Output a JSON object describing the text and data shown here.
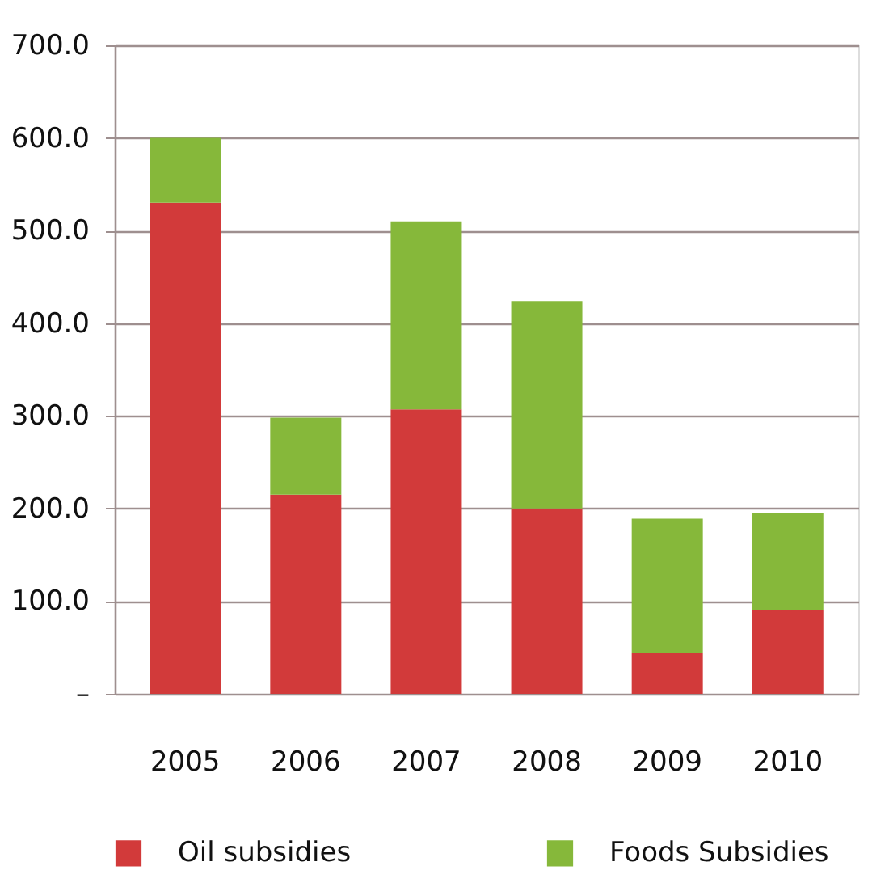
{
  "chart_data": {
    "type": "bar",
    "stacked": true,
    "categories": [
      "2005",
      "2006",
      "2007",
      "2008",
      "2009",
      "2010"
    ],
    "series": [
      {
        "name": "Oil subsidies",
        "color": "#d23a3a",
        "values": [
          530,
          215,
          307,
          200,
          44,
          90
        ]
      },
      {
        "name": "Foods Subsidies",
        "color": "#86b83a",
        "values": [
          70,
          83,
          203,
          224,
          145,
          105
        ]
      }
    ],
    "ylim": [
      0,
      700
    ],
    "yticks": [
      {
        "value": 0,
        "label": "–"
      },
      {
        "value": 100,
        "label": "100.0"
      },
      {
        "value": 200,
        "label": "200.0"
      },
      {
        "value": 300,
        "label": "300.0"
      },
      {
        "value": 400,
        "label": "400.0"
      },
      {
        "value": 500,
        "label": "500.0"
      },
      {
        "value": 600,
        "label": "600.0"
      },
      {
        "value": 700,
        "label": "700.0"
      }
    ],
    "grid": "y",
    "legend": "bottom"
  }
}
